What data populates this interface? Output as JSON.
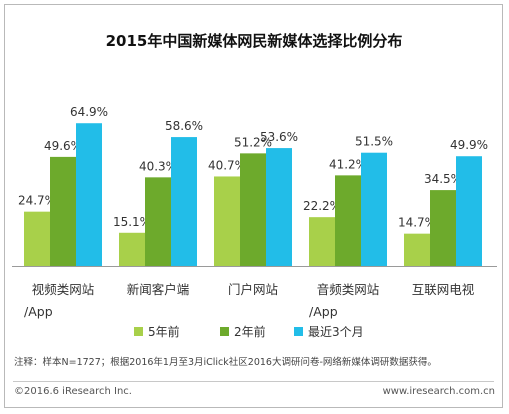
{
  "chart_data": {
    "type": "bar",
    "title": "2015年中国新媒体网民新媒体选择比例分布",
    "categories": [
      [
        "视频类网站",
        "/App"
      ],
      [
        "新闻客户端"
      ],
      [
        "门户网站"
      ],
      [
        "音频类网站",
        "/App"
      ],
      [
        "互联网电视"
      ]
    ],
    "series": [
      {
        "name": "5年前",
        "color": "#a8d04a",
        "values": [
          24.7,
          15.1,
          40.7,
          22.2,
          14.7
        ],
        "labels": [
          "24.7%",
          "15.1%",
          "40.7%",
          "22.2%",
          "14.7%"
        ]
      },
      {
        "name": "2年前",
        "color": "#6daa2c",
        "values": [
          49.6,
          40.3,
          51.2,
          41.2,
          34.5
        ],
        "labels": [
          "49.6%",
          "40.3%",
          "51.2%",
          "41.2%",
          "34.5%"
        ]
      },
      {
        "name": "最近3个月",
        "color": "#22bde8",
        "values": [
          64.9,
          58.6,
          53.6,
          51.5,
          49.9
        ],
        "labels": [
          "64.9%",
          "58.6%",
          "53.6%",
          "51.5%",
          "49.9%"
        ]
      }
    ],
    "ylim": [
      0,
      70
    ],
    "grid": false,
    "legend": "bottom"
  },
  "note": "注释：样本N=1727；根据2016年1月至3月iClick社区2016大调研问卷-网络新媒体调研数据获得。",
  "footer": {
    "copyright": "©2016.6 iResearch Inc.",
    "site": "www.iresearch.com.cn"
  }
}
